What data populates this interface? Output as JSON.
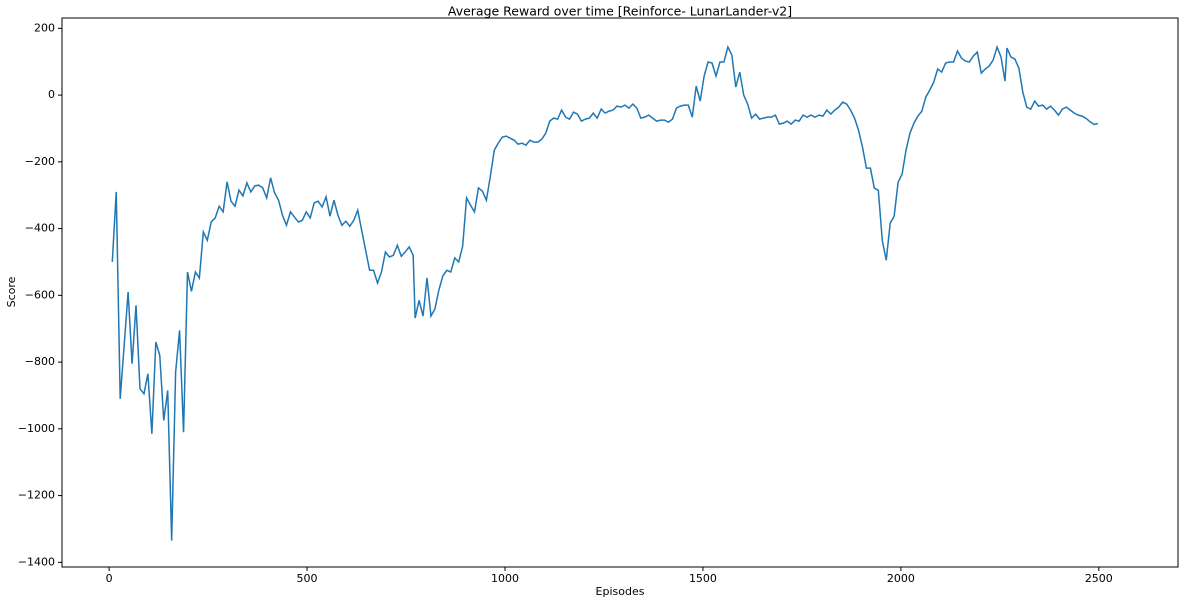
{
  "chart_data": {
    "type": "line",
    "title": "Average Reward over time [Reinforce- LunarLander-v2]",
    "x_label": "Episodes",
    "y_label": "Score",
    "x": [
      8,
      18,
      28,
      48,
      58,
      68,
      78,
      88,
      98,
      108,
      118,
      128,
      138,
      148,
      158,
      168,
      178,
      188,
      198,
      208,
      218,
      228,
      238,
      248,
      258,
      268,
      278,
      288,
      298,
      308,
      318,
      328,
      338,
      348,
      358,
      368,
      378,
      388,
      398,
      408,
      418,
      428,
      438,
      448,
      458,
      468,
      478,
      488,
      498,
      508,
      518,
      528,
      538,
      548,
      558,
      568,
      578,
      588,
      598,
      608,
      618,
      628,
      638,
      648,
      658,
      668,
      678,
      688,
      698,
      708,
      718,
      728,
      738,
      748,
      758,
      768,
      773,
      783,
      793,
      803,
      813,
      823,
      833,
      843,
      853,
      863,
      873,
      883,
      893,
      903,
      913,
      923,
      933,
      943,
      953,
      963,
      973,
      983,
      993,
      1003,
      1013,
      1023,
      1033,
      1043,
      1053,
      1063,
      1073,
      1083,
      1093,
      1103,
      1113,
      1123,
      1133,
      1143,
      1153,
      1163,
      1173,
      1183,
      1193,
      1203,
      1213,
      1223,
      1233,
      1243,
      1253,
      1263,
      1273,
      1283,
      1293,
      1303,
      1313,
      1323,
      1333,
      1343,
      1353,
      1363,
      1373,
      1383,
      1393,
      1403,
      1413,
      1423,
      1433,
      1443,
      1453,
      1463,
      1473,
      1483,
      1493,
      1503,
      1513,
      1523,
      1533,
      1543,
      1553,
      1563,
      1573,
      1583,
      1593,
      1603,
      1613,
      1623,
      1633,
      1643,
      1653,
      1663,
      1673,
      1683,
      1693,
      1703,
      1713,
      1723,
      1733,
      1743,
      1753,
      1763,
      1773,
      1783,
      1793,
      1803,
      1813,
      1823,
      1833,
      1843,
      1853,
      1863,
      1873,
      1883,
      1893,
      1903,
      1913,
      1923,
      1933,
      1943,
      1953,
      1963,
      1973,
      1983,
      1993,
      2003,
      2013,
      2023,
      2033,
      2043,
      2053,
      2063,
      2073,
      2083,
      2093,
      2103,
      2113,
      2123,
      2133,
      2143,
      2153,
      2163,
      2173,
      2183,
      2193,
      2203,
      2213,
      2223,
      2233,
      2243,
      2253,
      2263,
      2268,
      2278,
      2288,
      2298,
      2308,
      2318,
      2328,
      2338,
      2348,
      2358,
      2368,
      2378,
      2388,
      2398,
      2408,
      2418,
      2428,
      2438,
      2448,
      2458,
      2468,
      2478,
      2488,
      2498
    ],
    "series": [
      {
        "name": "Score",
        "color": "#1f77b4",
        "values": [
          -500,
          -290,
          -910,
          -590,
          -805,
          -630,
          -880,
          -895,
          -835,
          -1015,
          -740,
          -780,
          -975,
          -885,
          -1335,
          -830,
          -705,
          -1010,
          -530,
          -588,
          -530,
          -548,
          -410,
          -435,
          -380,
          -368,
          -333,
          -350,
          -260,
          -318,
          -333,
          -285,
          -302,
          -263,
          -290,
          -272,
          -270,
          -278,
          -308,
          -248,
          -293,
          -315,
          -360,
          -390,
          -350,
          -365,
          -380,
          -375,
          -350,
          -368,
          -323,
          -318,
          -335,
          -305,
          -363,
          -315,
          -360,
          -390,
          -378,
          -393,
          -375,
          -345,
          -405,
          -465,
          -525,
          -525,
          -563,
          -530,
          -470,
          -485,
          -480,
          -450,
          -483,
          -470,
          -455,
          -480,
          -668,
          -615,
          -662,
          -548,
          -662,
          -641,
          -584,
          -542,
          -525,
          -530,
          -488,
          -500,
          -453,
          -308,
          -330,
          -350,
          -278,
          -288,
          -315,
          -243,
          -165,
          -144,
          -126,
          -123,
          -129,
          -135,
          -147,
          -144,
          -150,
          -135,
          -141,
          -141,
          -132,
          -114,
          -78,
          -69,
          -72,
          -45,
          -66,
          -72,
          -51,
          -57,
          -78,
          -72,
          -69,
          -54,
          -69,
          -42,
          -54,
          -48,
          -45,
          -33,
          -36,
          -30,
          -39,
          -27,
          -39,
          -69,
          -66,
          -60,
          -69,
          -78,
          -75,
          -75,
          -81,
          -72,
          -39,
          -33,
          -30,
          -30,
          -66,
          27,
          -18,
          57,
          99,
          96,
          57,
          99,
          99,
          144,
          120,
          24,
          69,
          0,
          -27,
          -69,
          -57,
          -72,
          -69,
          -66,
          -66,
          -60,
          -87,
          -84,
          -78,
          -87,
          -75,
          -78,
          -60,
          -66,
          -60,
          -66,
          -60,
          -63,
          -45,
          -57,
          -45,
          -36,
          -21,
          -27,
          -45,
          -69,
          -105,
          -156,
          -219,
          -219,
          -279,
          -285,
          -435,
          -495,
          -384,
          -363,
          -261,
          -237,
          -165,
          -114,
          -84,
          -63,
          -48,
          -6,
          15,
          39,
          78,
          69,
          96,
          99,
          99,
          132,
          111,
          102,
          99,
          117,
          129,
          66,
          78,
          87,
          105,
          144,
          114,
          42,
          141,
          114,
          108,
          81,
          9,
          -36,
          -42,
          -18,
          -33,
          -30,
          -42,
          -33,
          -45,
          -60,
          -42,
          -36,
          -45,
          -54,
          -60,
          -63,
          -70,
          -80,
          -88,
          -85
        ]
      }
    ],
    "xlim": [
      -119,
      2700
    ],
    "ylim": [
      -1414,
      231
    ],
    "xticks": [
      0,
      500,
      1000,
      1500,
      2000,
      2500
    ],
    "yticks": [
      {
        "value": -1400,
        "label": "−1400"
      },
      {
        "value": -1200,
        "label": "−1200"
      },
      {
        "value": -1000,
        "label": "−1000"
      },
      {
        "value": -800,
        "label": "−800"
      },
      {
        "value": -600,
        "label": "−600"
      },
      {
        "value": -400,
        "label": "−400"
      },
      {
        "value": -200,
        "label": "−200"
      },
      0,
      200
    ],
    "grid": false
  }
}
